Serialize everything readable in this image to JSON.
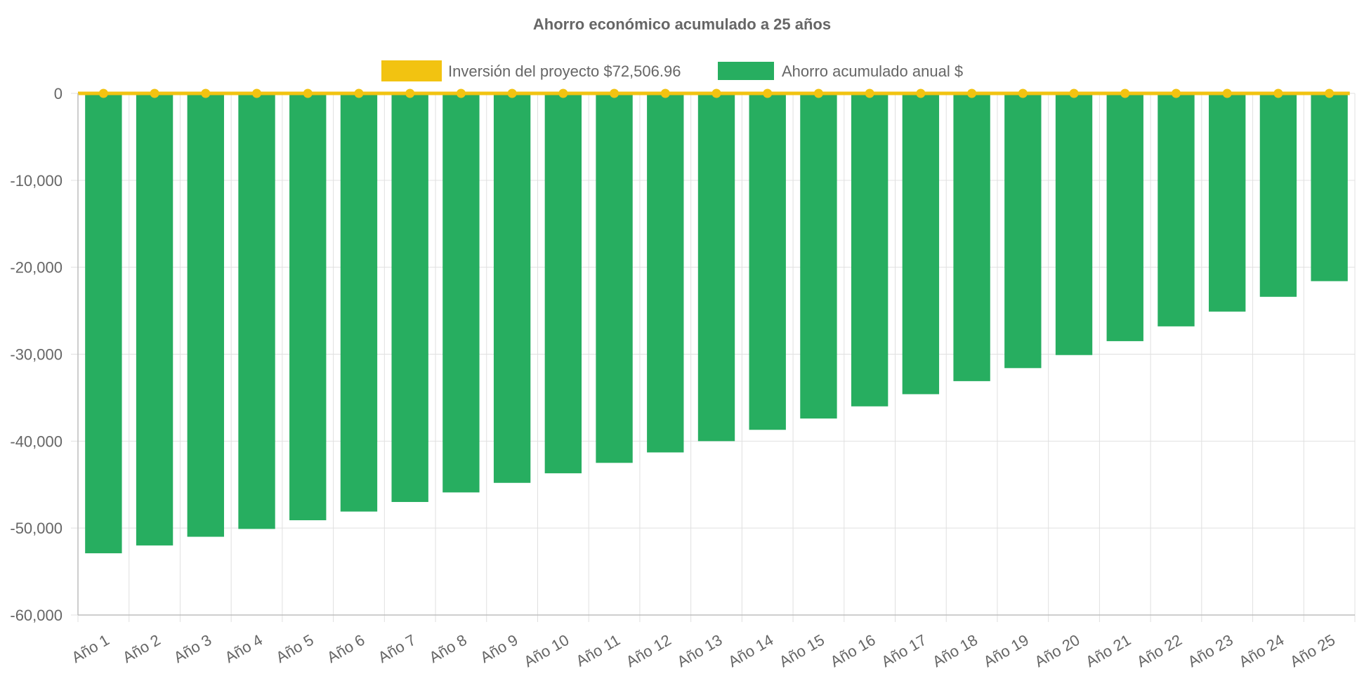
{
  "chart_data": {
    "type": "bar",
    "title": "Ahorro económico acumulado a 25 años",
    "categories": [
      "Año 1",
      "Año 2",
      "Año 3",
      "Año 4",
      "Año 5",
      "Año 6",
      "Año 7",
      "Año 8",
      "Año 9",
      "Año 10",
      "Año 11",
      "Año 12",
      "Año 13",
      "Año 14",
      "Año 15",
      "Año 16",
      "Año 17",
      "Año 18",
      "Año 19",
      "Año 20",
      "Año 21",
      "Año 22",
      "Año 23",
      "Año 24",
      "Año 25"
    ],
    "series": [
      {
        "name": "Inversión del proyecto $72,506.96",
        "type": "line",
        "color": "#f2c311",
        "values": [
          0,
          0,
          0,
          0,
          0,
          0,
          0,
          0,
          0,
          0,
          0,
          0,
          0,
          0,
          0,
          0,
          0,
          0,
          0,
          0,
          0,
          0,
          0,
          0,
          0
        ]
      },
      {
        "name": "Ahorro acumulado anual $",
        "type": "bar",
        "color": "#27ae60",
        "values": [
          -52900,
          -52000,
          -51000,
          -50100,
          -49100,
          -48100,
          -47000,
          -45900,
          -44800,
          -43700,
          -42500,
          -41300,
          -40000,
          -38700,
          -37400,
          -36000,
          -34600,
          -33100,
          -31600,
          -30100,
          -28500,
          -26800,
          -25100,
          -23400,
          -21600
        ]
      }
    ],
    "ylim": [
      -60000,
      0
    ],
    "yticks": [
      0,
      -10000,
      -20000,
      -30000,
      -40000,
      -50000,
      -60000
    ],
    "ytick_labels": [
      "0",
      "-10,000",
      "-20,000",
      "-30,000",
      "-40,000",
      "-50,000",
      "-60,000"
    ],
    "grid": true,
    "legend_position": "top-center",
    "xlabel": "",
    "ylabel": "",
    "colors": {
      "grid": "#e0e0e0",
      "axis": "#bdbdbd",
      "text": "#666666",
      "background": "#ffffff"
    }
  }
}
